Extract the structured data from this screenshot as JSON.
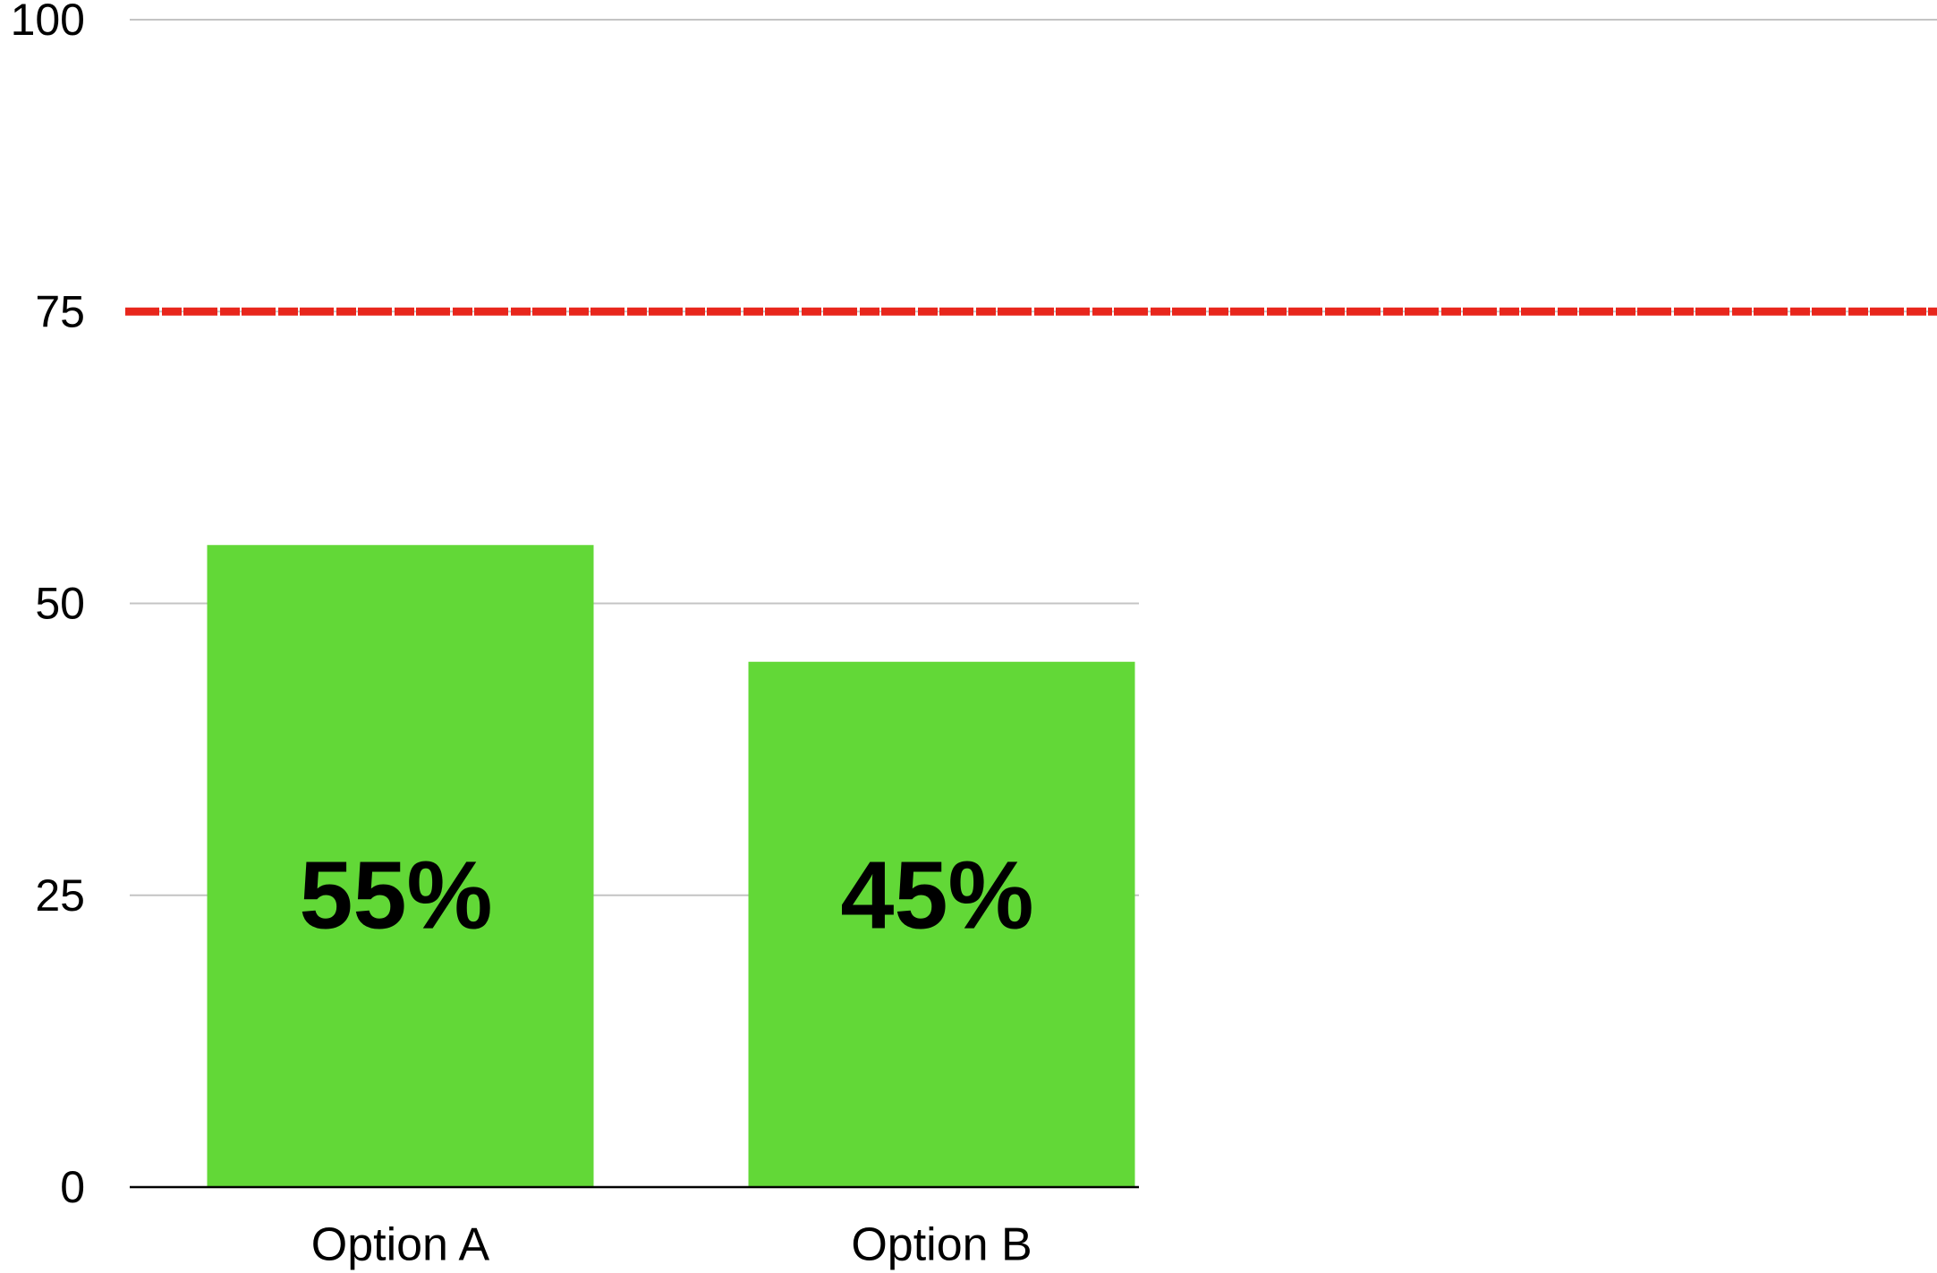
{
  "chart_data": {
    "type": "bar",
    "categories": [
      "Option A",
      "Option B"
    ],
    "values": [
      55,
      45
    ],
    "value_labels": [
      "55%",
      "45%"
    ],
    "color": "#62d837",
    "ylim": [
      0,
      100
    ],
    "yticks": [
      0,
      25,
      50,
      75,
      100
    ],
    "grid": true,
    "threshold": {
      "value": 75,
      "color": "#e8261c"
    }
  }
}
